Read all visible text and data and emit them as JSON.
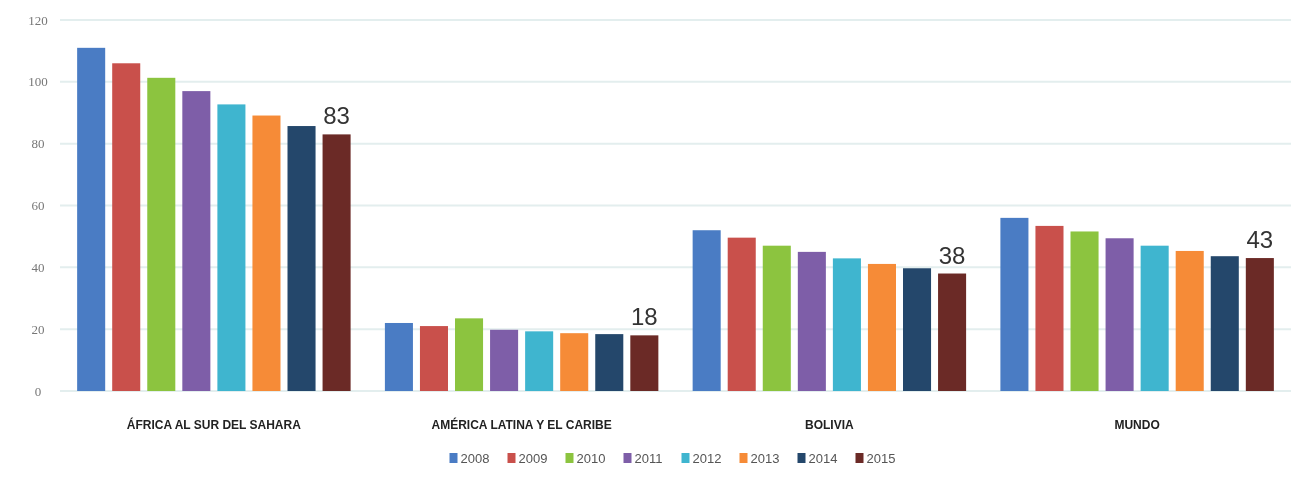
{
  "chart_data": {
    "type": "bar",
    "categories": [
      "ÁFRICA AL SUR DEL SAHARA",
      "AMÉRICA LATINA Y EL CARIBE",
      "BOLIVIA",
      "MUNDO"
    ],
    "series": [
      {
        "name": "2008",
        "color": "#4a7cc4",
        "values": [
          111,
          22,
          52,
          56
        ]
      },
      {
        "name": "2009",
        "color": "#c9504b",
        "values": [
          106,
          21,
          49.6,
          53.4
        ]
      },
      {
        "name": "2010",
        "color": "#8cc43f",
        "values": [
          101.3,
          23.5,
          47,
          51.6
        ]
      },
      {
        "name": "2011",
        "color": "#7e5ea8",
        "values": [
          97,
          19.8,
          45,
          49.4
        ]
      },
      {
        "name": "2012",
        "color": "#3fb5cf",
        "values": [
          92.7,
          19.3,
          42.9,
          47
        ]
      },
      {
        "name": "2013",
        "color": "#f68b37",
        "values": [
          89.1,
          18.7,
          41.1,
          45.3
        ]
      },
      {
        "name": "2014",
        "color": "#24476b",
        "values": [
          85.7,
          18.4,
          39.7,
          43.6
        ]
      },
      {
        "name": "2015",
        "color": "#6b2a26",
        "values": [
          83,
          18,
          38,
          43
        ],
        "value_labels": [
          "83",
          "18",
          "38",
          "43"
        ]
      }
    ],
    "ylim": [
      0,
      120
    ],
    "yticks": [
      0,
      20,
      40,
      60,
      80,
      100,
      120
    ],
    "grid": "y",
    "legend": "bottom"
  }
}
